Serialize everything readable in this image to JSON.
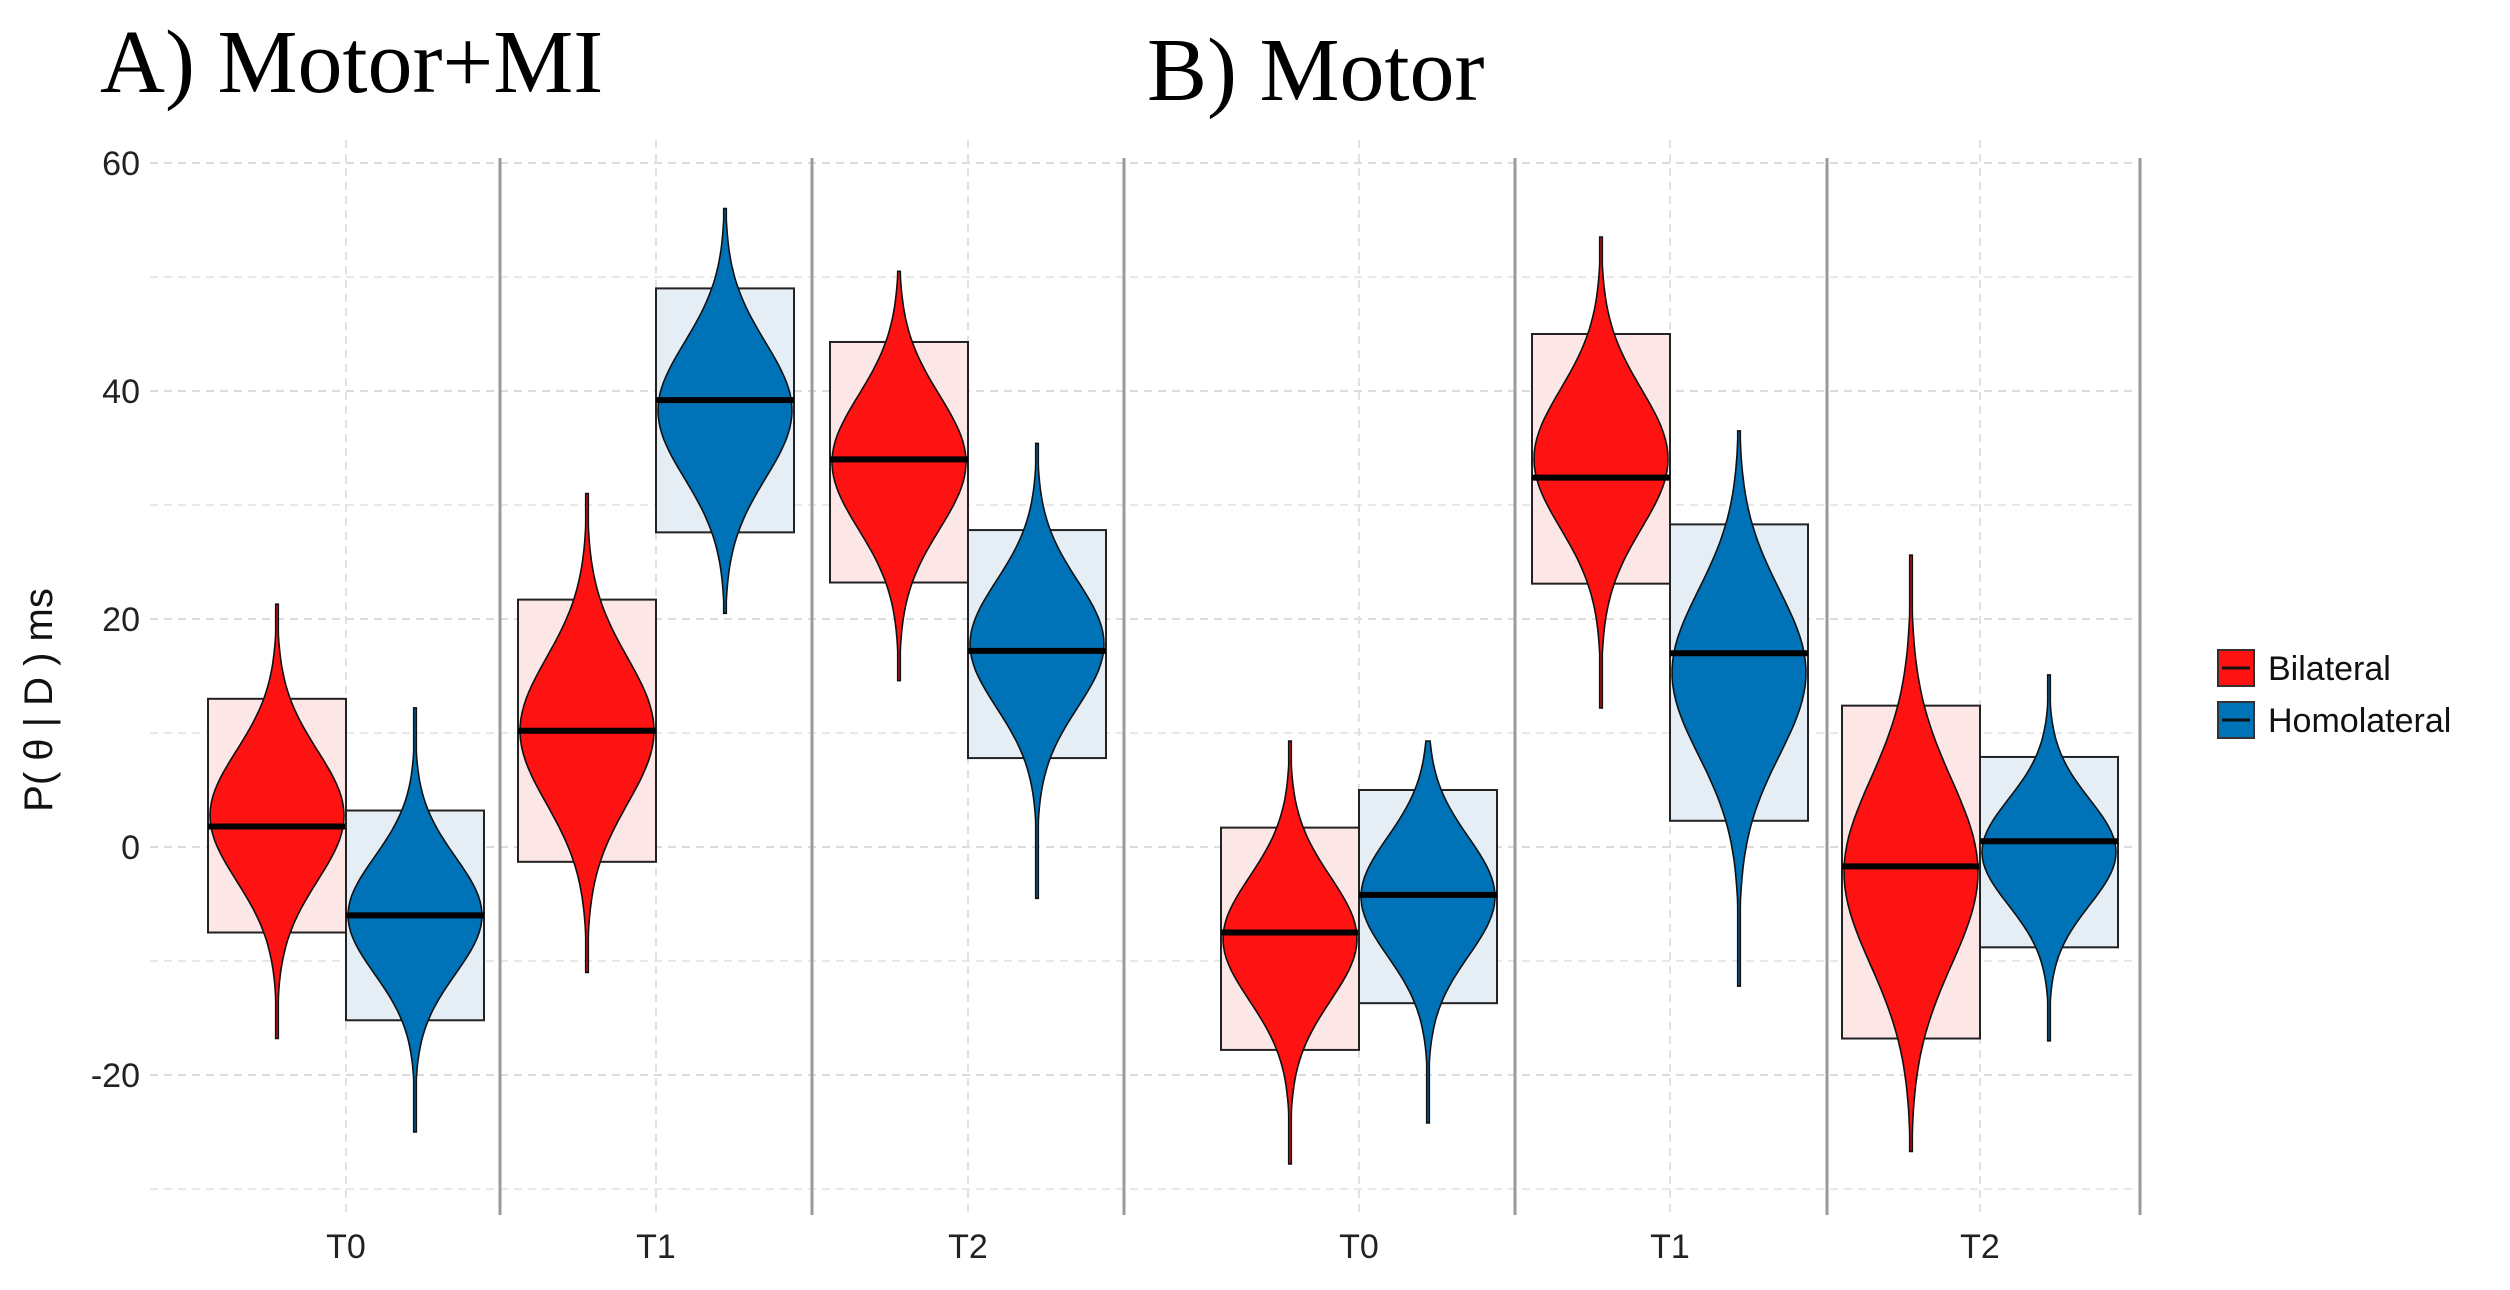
{
  "chart_data": {
    "type": "violin",
    "ylabel": "P( θ | D ) ms",
    "ylim": [
      -30,
      62
    ],
    "y_ticks": [
      -20,
      0,
      20,
      40,
      60
    ],
    "grid": true,
    "legend": {
      "position": "right",
      "entries": [
        {
          "name": "Bilateral",
          "color": "#ff1212"
        },
        {
          "name": "Homolateral",
          "color": "#0072b8"
        }
      ]
    },
    "panels": [
      {
        "title": "A) Motor+MI",
        "categories": [
          "T0",
          "T1",
          "T2"
        ],
        "series": [
          {
            "name": "Bilateral",
            "color": "#ff1212",
            "box_fill": "#fde6e6",
            "values": [
              {
                "category": "T0",
                "median": 1.8,
                "box": [
                  -7.5,
                  13.0
                ],
                "range": [
                  -16.8,
                  21.3
                ]
              },
              {
                "category": "T1",
                "median": 10.2,
                "box": [
                  -1.3,
                  21.7
                ],
                "range": [
                  -11.0,
                  31.0
                ]
              },
              {
                "category": "T2",
                "median": 34.0,
                "box": [
                  23.2,
                  44.3
                ],
                "range": [
                  14.6,
                  50.5
                ]
              }
            ]
          },
          {
            "name": "Homolateral",
            "color": "#0072b8",
            "box_fill": "#e6eef5",
            "values": [
              {
                "category": "T0",
                "median": -6.0,
                "box": [
                  -15.2,
                  3.2
                ],
                "range": [
                  -25.0,
                  12.2
                ]
              },
              {
                "category": "T1",
                "median": 39.2,
                "box": [
                  27.6,
                  49.0
                ],
                "range": [
                  20.5,
                  56.0
                ]
              },
              {
                "category": "T2",
                "median": 17.2,
                "box": [
                  7.8,
                  27.8
                ],
                "range": [
                  -4.5,
                  35.4
                ]
              }
            ]
          }
        ]
      },
      {
        "title": "B) Motor",
        "categories": [
          "T0",
          "T1",
          "T2"
        ],
        "series": [
          {
            "name": "Bilateral",
            "color": "#ff1212",
            "box_fill": "#fde6e6",
            "values": [
              {
                "category": "T0",
                "median": -7.5,
                "box": [
                  -17.8,
                  1.7
                ],
                "range": [
                  -27.8,
                  9.3
                ]
              },
              {
                "category": "T1",
                "median": 32.4,
                "box": [
                  23.1,
                  45.0
                ],
                "range": [
                  12.2,
                  53.5
                ]
              },
              {
                "category": "T2",
                "median": -1.7,
                "box": [
                  -16.8,
                  12.4
                ],
                "range": [
                  -26.7,
                  25.6
                ]
              }
            ]
          },
          {
            "name": "Homolateral",
            "color": "#0072b8",
            "box_fill": "#e6eef5",
            "values": [
              {
                "category": "T0",
                "median": -4.2,
                "box": [
                  -13.7,
                  5.0
                ],
                "range": [
                  -24.2,
                  9.3
                ]
              },
              {
                "category": "T1",
                "median": 17.0,
                "box": [
                  2.3,
                  28.3
                ],
                "range": [
                  -12.2,
                  36.5
                ]
              },
              {
                "category": "T2",
                "median": 0.5,
                "box": [
                  -8.8,
                  7.9
                ],
                "range": [
                  -17.0,
                  15.1
                ]
              }
            ]
          }
        ]
      }
    ]
  }
}
